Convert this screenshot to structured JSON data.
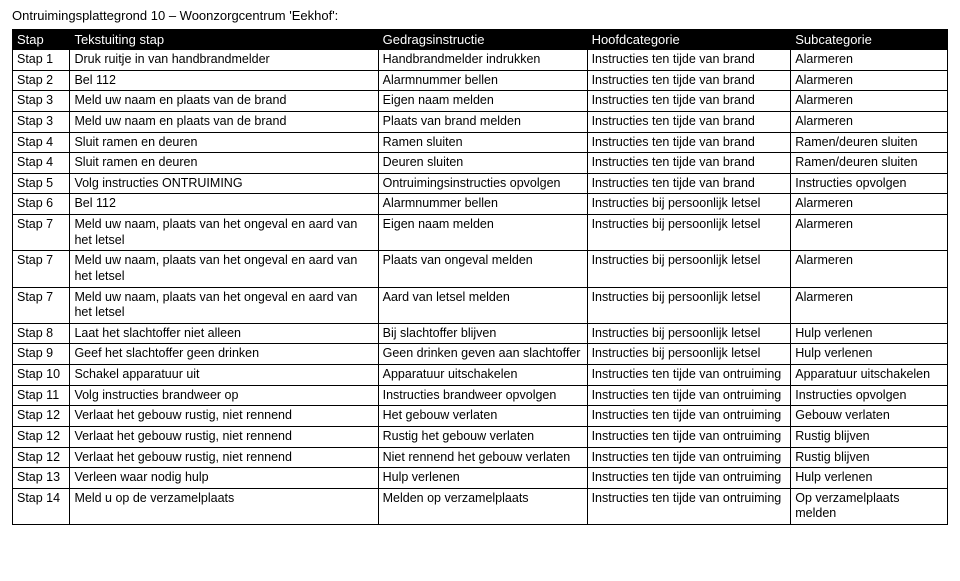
{
  "title": "Ontruimingsplattegrond 10 – Woonzorgcentrum 'Eekhof':",
  "headers": {
    "c0": "Stap",
    "c1": "Tekstuiting stap",
    "c2": "Gedragsinstructie",
    "c3": "Hoofdcategorie",
    "c4": "Subcategorie"
  },
  "rows": [
    {
      "c0": "Stap 1",
      "c1": "Druk ruitje in van handbrandmelder",
      "c2": "Handbrandmelder indrukken",
      "c3": "Instructies ten tijde van brand",
      "c4": "Alarmeren"
    },
    {
      "c0": "Stap 2",
      "c1": "Bel 112",
      "c2": "Alarmnummer bellen",
      "c3": "Instructies ten tijde van brand",
      "c4": "Alarmeren"
    },
    {
      "c0": "Stap 3",
      "c1": "Meld uw naam en plaats van de brand",
      "c2": "Eigen naam melden",
      "c3": "Instructies ten tijde van brand",
      "c4": "Alarmeren"
    },
    {
      "c0": "Stap 3",
      "c1": "Meld uw naam en plaats van de brand",
      "c2": "Plaats van brand melden",
      "c3": "Instructies ten tijde van brand",
      "c4": "Alarmeren"
    },
    {
      "c0": "Stap 4",
      "c1": "Sluit ramen en deuren",
      "c2": "Ramen sluiten",
      "c3": "Instructies ten tijde van brand",
      "c4": "Ramen/deuren sluiten"
    },
    {
      "c0": "Stap 4",
      "c1": "Sluit ramen en deuren",
      "c2": "Deuren sluiten",
      "c3": "Instructies ten tijde van brand",
      "c4": "Ramen/deuren sluiten"
    },
    {
      "c0": "Stap 5",
      "c1": "Volg instructies ONTRUIMING",
      "c2": "Ontruimingsinstructies opvolgen",
      "c3": "Instructies ten tijde van brand",
      "c4": "Instructies opvolgen"
    },
    {
      "c0": "Stap 6",
      "c1": "Bel 112",
      "c2": "Alarmnummer bellen",
      "c3": "Instructies bij persoonlijk letsel",
      "c4": "Alarmeren"
    },
    {
      "c0": "Stap 7",
      "c1": "Meld uw naam, plaats van het ongeval en aard van het letsel",
      "c2": "Eigen naam melden",
      "c3": "Instructies bij persoonlijk letsel",
      "c4": "Alarmeren"
    },
    {
      "c0": "Stap 7",
      "c1": "Meld uw naam, plaats van het ongeval en aard van het letsel",
      "c2": "Plaats van ongeval melden",
      "c3": "Instructies bij persoonlijk letsel",
      "c4": "Alarmeren"
    },
    {
      "c0": "Stap 7",
      "c1": "Meld uw naam, plaats van het ongeval en aard van het letsel",
      "c2": "Aard van letsel melden",
      "c3": "Instructies bij persoonlijk letsel",
      "c4": "Alarmeren"
    },
    {
      "c0": "Stap 8",
      "c1": "Laat het slachtoffer niet alleen",
      "c2": "Bij slachtoffer blijven",
      "c3": "Instructies bij persoonlijk letsel",
      "c4": "Hulp verlenen"
    },
    {
      "c0": "Stap 9",
      "c1": "Geef het slachtoffer geen drinken",
      "c2": "Geen drinken geven aan slachtoffer",
      "c3": "Instructies bij persoonlijk letsel",
      "c4": "Hulp verlenen"
    },
    {
      "c0": "Stap 10",
      "c1": "Schakel apparatuur uit",
      "c2": "Apparatuur uitschakelen",
      "c3": "Instructies ten tijde van ontruiming",
      "c4": "Apparatuur uitschakelen"
    },
    {
      "c0": "Stap 11",
      "c1": "Volg instructies brandweer op",
      "c2": "Instructies brandweer opvolgen",
      "c3": "Instructies ten tijde van ontruiming",
      "c4": "Instructies opvolgen"
    },
    {
      "c0": "Stap 12",
      "c1": "Verlaat het gebouw rustig, niet rennend",
      "c2": "Het gebouw verlaten",
      "c3": "Instructies ten tijde van ontruiming",
      "c4": "Gebouw verlaten"
    },
    {
      "c0": "Stap 12",
      "c1": "Verlaat het gebouw rustig, niet rennend",
      "c2": "Rustig het gebouw verlaten",
      "c3": "Instructies ten tijde van ontruiming",
      "c4": "Rustig blijven"
    },
    {
      "c0": "Stap 12",
      "c1": "Verlaat het gebouw rustig, niet rennend",
      "c2": "Niet rennend het gebouw verlaten",
      "c3": "Instructies ten tijde van ontruiming",
      "c4": "Rustig blijven"
    },
    {
      "c0": "Stap 13",
      "c1": "Verleen waar nodig hulp",
      "c2": "Hulp verlenen",
      "c3": "Instructies ten tijde van ontruiming",
      "c4": "Hulp verlenen"
    },
    {
      "c0": "Stap 14",
      "c1": "Meld u op de verzamelplaats",
      "c2": "Melden op verzamelplaats",
      "c3": "Instructies ten tijde van ontruiming",
      "c4": "Op verzamelplaats melden"
    }
  ]
}
